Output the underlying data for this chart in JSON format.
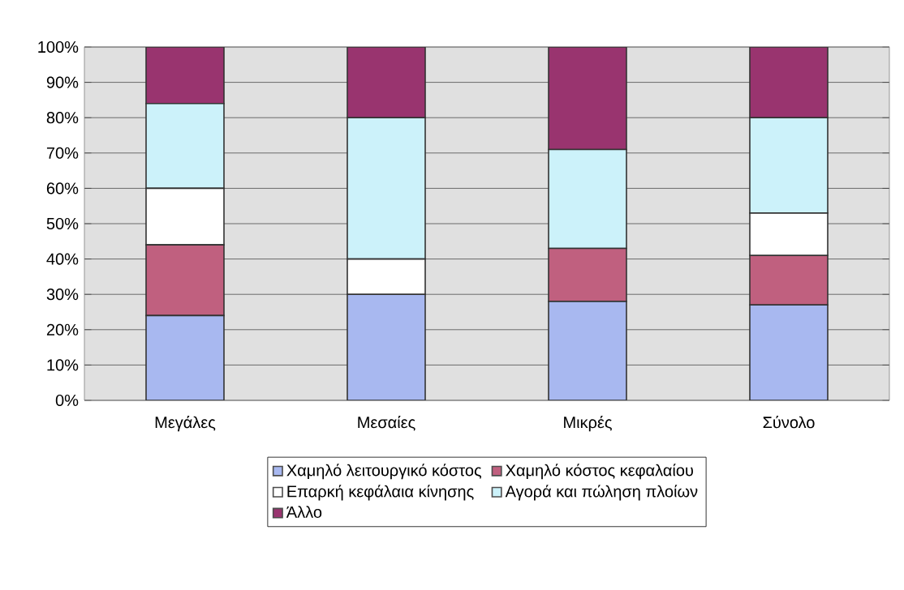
{
  "chart_data": {
    "type": "bar",
    "stacked": true,
    "categories": [
      "Μεγάλες",
      "Μεσαίες",
      "Μικρές",
      "Σύνολο"
    ],
    "series": [
      {
        "name": "Χαμηλό λειτουργικό κόστος",
        "color": "#a8b8f0",
        "values": [
          24,
          30,
          28,
          27
        ]
      },
      {
        "name": "Χαμηλό κόστος κεφαλαίου",
        "color": "#c0607f",
        "values": [
          20,
          0,
          15,
          14
        ]
      },
      {
        "name": "Επαρκή κεφάλαια κίνησης",
        "color": "#ffffff",
        "values": [
          16,
          10,
          0,
          12
        ]
      },
      {
        "name": "Αγορά και πώληση πλοίων",
        "color": "#ccf2fa",
        "values": [
          24,
          40,
          28,
          27
        ]
      },
      {
        "name": "Άλλο",
        "color": "#99346f",
        "values": [
          16,
          20,
          29,
          20
        ]
      }
    ],
    "ylim": [
      0,
      100
    ],
    "yticks": [
      {
        "value": 0,
        "label": "0%"
      },
      {
        "value": 10,
        "label": "10%"
      },
      {
        "value": 20,
        "label": "20%"
      },
      {
        "value": 30,
        "label": "30%"
      },
      {
        "value": 40,
        "label": "40%"
      },
      {
        "value": 50,
        "label": "50%"
      },
      {
        "value": 60,
        "label": "60%"
      },
      {
        "value": 70,
        "label": "70%"
      },
      {
        "value": 80,
        "label": "80%"
      },
      {
        "value": 90,
        "label": "90%"
      },
      {
        "value": 100,
        "label": "100%"
      }
    ],
    "grid": "y",
    "legend": "bottom"
  }
}
